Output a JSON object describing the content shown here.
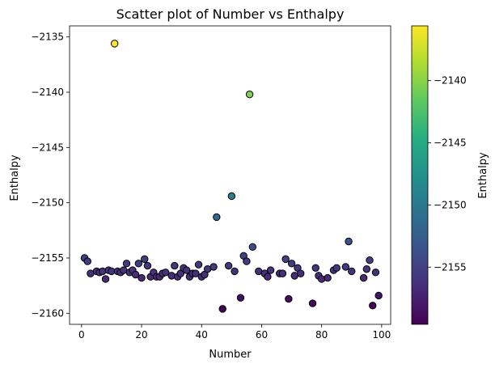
{
  "chart_data": {
    "type": "scatter",
    "title": "Scatter plot of Number vs Enthalpy",
    "xlabel": "Number",
    "ylabel": "Enthalpy",
    "xlim": [
      -4,
      103
    ],
    "ylim": [
      -2161,
      -2134
    ],
    "xticks": [
      0,
      20,
      40,
      60,
      80,
      100
    ],
    "yticks": [
      -2160,
      -2155,
      -2150,
      -2145,
      -2140,
      -2135
    ],
    "colorbar": {
      "label": "Enthalpy",
      "colormap": "viridis",
      "range": [
        -2159.6,
        -2135.6
      ],
      "ticks": [
        -2155,
        -2150,
        -2145,
        -2140
      ]
    },
    "points": [
      {
        "x": 1,
        "y": -2155.0
      },
      {
        "x": 2,
        "y": -2155.3
      },
      {
        "x": 3,
        "y": -2156.4
      },
      {
        "x": 5,
        "y": -2156.2
      },
      {
        "x": 6,
        "y": -2156.3
      },
      {
        "x": 7,
        "y": -2156.2
      },
      {
        "x": 8,
        "y": -2156.9
      },
      {
        "x": 9,
        "y": -2156.1
      },
      {
        "x": 10,
        "y": -2156.2
      },
      {
        "x": 11,
        "y": -2135.6
      },
      {
        "x": 12,
        "y": -2156.2
      },
      {
        "x": 13,
        "y": -2156.3
      },
      {
        "x": 14,
        "y": -2156.1
      },
      {
        "x": 15,
        "y": -2155.5
      },
      {
        "x": 16,
        "y": -2156.3
      },
      {
        "x": 17,
        "y": -2156.1
      },
      {
        "x": 18,
        "y": -2156.5
      },
      {
        "x": 19,
        "y": -2155.5
      },
      {
        "x": 20,
        "y": -2156.8
      },
      {
        "x": 21,
        "y": -2155.1
      },
      {
        "x": 22,
        "y": -2155.7
      },
      {
        "x": 23,
        "y": -2156.7
      },
      {
        "x": 24,
        "y": -2156.3
      },
      {
        "x": 25,
        "y": -2156.7
      },
      {
        "x": 26,
        "y": -2156.7
      },
      {
        "x": 27,
        "y": -2156.4
      },
      {
        "x": 28,
        "y": -2156.3
      },
      {
        "x": 30,
        "y": -2156.6
      },
      {
        "x": 31,
        "y": -2155.7
      },
      {
        "x": 32,
        "y": -2156.7
      },
      {
        "x": 33,
        "y": -2156.4
      },
      {
        "x": 34,
        "y": -2155.9
      },
      {
        "x": 35,
        "y": -2156.1
      },
      {
        "x": 36,
        "y": -2156.7
      },
      {
        "x": 37,
        "y": -2156.4
      },
      {
        "x": 38,
        "y": -2156.4
      },
      {
        "x": 39,
        "y": -2155.6
      },
      {
        "x": 40,
        "y": -2156.7
      },
      {
        "x": 41,
        "y": -2156.5
      },
      {
        "x": 42,
        "y": -2156.0
      },
      {
        "x": 44,
        "y": -2155.8
      },
      {
        "x": 45,
        "y": -2151.3
      },
      {
        "x": 47,
        "y": -2159.6
      },
      {
        "x": 49,
        "y": -2155.7
      },
      {
        "x": 50,
        "y": -2149.4
      },
      {
        "x": 51,
        "y": -2156.2
      },
      {
        "x": 53,
        "y": -2158.6
      },
      {
        "x": 54,
        "y": -2154.8
      },
      {
        "x": 55,
        "y": -2155.3
      },
      {
        "x": 56,
        "y": -2140.2
      },
      {
        "x": 57,
        "y": -2154.0
      },
      {
        "x": 59,
        "y": -2156.2
      },
      {
        "x": 61,
        "y": -2156.4
      },
      {
        "x": 62,
        "y": -2156.7
      },
      {
        "x": 63,
        "y": -2156.1
      },
      {
        "x": 66,
        "y": -2156.4
      },
      {
        "x": 67,
        "y": -2156.4
      },
      {
        "x": 68,
        "y": -2155.1
      },
      {
        "x": 69,
        "y": -2158.7
      },
      {
        "x": 70,
        "y": -2155.5
      },
      {
        "x": 71,
        "y": -2156.6
      },
      {
        "x": 72,
        "y": -2155.9
      },
      {
        "x": 73,
        "y": -2156.4
      },
      {
        "x": 77,
        "y": -2159.1
      },
      {
        "x": 78,
        "y": -2155.9
      },
      {
        "x": 79,
        "y": -2156.6
      },
      {
        "x": 80,
        "y": -2156.9
      },
      {
        "x": 82,
        "y": -2156.8
      },
      {
        "x": 84,
        "y": -2156.1
      },
      {
        "x": 85,
        "y": -2155.9
      },
      {
        "x": 88,
        "y": -2155.8
      },
      {
        "x": 89,
        "y": -2153.5
      },
      {
        "x": 90,
        "y": -2156.2
      },
      {
        "x": 94,
        "y": -2156.8
      },
      {
        "x": 95,
        "y": -2156.0
      },
      {
        "x": 96,
        "y": -2155.2
      },
      {
        "x": 97,
        "y": -2159.3
      },
      {
        "x": 98,
        "y": -2156.3
      },
      {
        "x": 99,
        "y": -2158.4
      }
    ]
  }
}
